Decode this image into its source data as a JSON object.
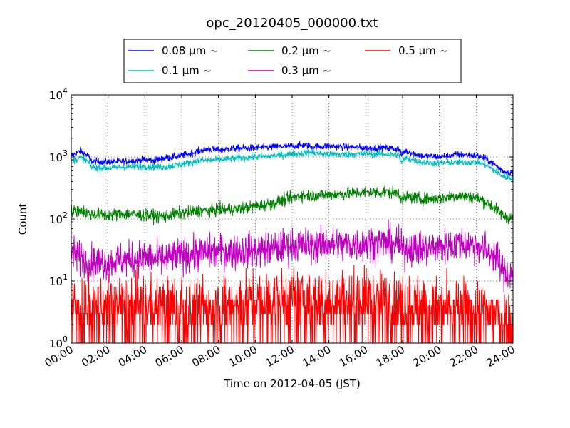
{
  "chart_data": {
    "type": "line",
    "title": "opc_20120405_000000.txt",
    "xlabel": "Time on 2012-04-05 (JST)",
    "ylabel": "Count",
    "x_ticks": [
      "00:00",
      "02:00",
      "04:00",
      "06:00",
      "08:00",
      "10:00",
      "12:00",
      "14:00",
      "16:00",
      "18:00",
      "20:00",
      "22:00",
      "24:00"
    ],
    "xlim_hours": [
      0,
      24
    ],
    "yscale": "log",
    "ylim": [
      1,
      10000
    ],
    "y_ticks": [
      {
        "base": "10",
        "exp": "0",
        "value": 1
      },
      {
        "base": "10",
        "exp": "1",
        "value": 10
      },
      {
        "base": "10",
        "exp": "2",
        "value": 100
      },
      {
        "base": "10",
        "exp": "3",
        "value": 1000
      },
      {
        "base": "10",
        "exp": "4",
        "value": 10000
      }
    ],
    "grid": true,
    "legend_position": "top, above plot",
    "series": [
      {
        "name": "0.08 μm ~",
        "color": "#0000ff",
        "noise": 0.04,
        "x": [
          0,
          0.4,
          0.5,
          0.9,
          1.1,
          2,
          3,
          4,
          4.5,
          5,
          6,
          7,
          7.5,
          8,
          9,
          10,
          11,
          12,
          12.8,
          13,
          14,
          15,
          16,
          17,
          17.8,
          17.95,
          18.05,
          18.2,
          19,
          20,
          21,
          22,
          22.5,
          23,
          23.5,
          24
        ],
        "y": [
          1050,
          1200,
          1250,
          1050,
          850,
          830,
          850,
          900,
          880,
          950,
          1050,
          1250,
          1350,
          1300,
          1380,
          1400,
          1450,
          1500,
          1550,
          1450,
          1500,
          1450,
          1400,
          1400,
          1350,
          1050,
          1200,
          1250,
          1050,
          1000,
          1100,
          1050,
          950,
          750,
          580,
          560
        ]
      },
      {
        "name": "0.1 μm ~",
        "color": "#00bfbf",
        "noise": 0.04,
        "x": [
          0,
          0.4,
          0.5,
          0.9,
          1.1,
          2,
          3,
          4,
          5,
          6,
          7,
          8,
          9,
          10,
          11,
          12,
          13,
          14,
          15,
          16,
          17,
          17.8,
          17.95,
          18.05,
          18.2,
          19,
          20,
          21,
          22,
          22.5,
          23,
          23.5,
          24
        ],
        "y": [
          850,
          950,
          980,
          850,
          680,
          660,
          690,
          700,
          680,
          760,
          870,
          900,
          950,
          1000,
          1040,
          1120,
          1180,
          1100,
          1100,
          1120,
          1120,
          1080,
          800,
          900,
          950,
          820,
          790,
          820,
          820,
          750,
          600,
          480,
          450
        ]
      },
      {
        "name": "0.2 μm ~",
        "color": "#008000",
        "noise": 0.07,
        "x": [
          0,
          0.5,
          1,
          2,
          3,
          4,
          5,
          6,
          7,
          8,
          9,
          10,
          11,
          12,
          12.5,
          13,
          14,
          15,
          16,
          17,
          17.8,
          18,
          18.2,
          19,
          20,
          21,
          22,
          22.5,
          23,
          23.5,
          24
        ],
        "y": [
          130,
          140,
          120,
          115,
          120,
          115,
          110,
          125,
          135,
          140,
          145,
          160,
          180,
          220,
          240,
          240,
          245,
          255,
          270,
          270,
          265,
          195,
          230,
          210,
          215,
          240,
          220,
          190,
          150,
          110,
          105
        ]
      },
      {
        "name": "0.3 μm ~",
        "color": "#bf00bf",
        "noise": 0.2,
        "x": [
          0,
          0.5,
          1,
          2,
          3,
          4,
          5,
          6,
          7,
          8,
          9,
          10,
          11,
          12,
          13,
          14,
          15,
          16,
          17,
          17.8,
          18,
          18.3,
          19,
          20,
          21,
          22,
          22.5,
          23,
          23.5,
          24
        ],
        "y": [
          28,
          25,
          20,
          20,
          22,
          24,
          22,
          26,
          28,
          30,
          30,
          31,
          33,
          38,
          37,
          40,
          38,
          40,
          42,
          38,
          30,
          36,
          32,
          35,
          40,
          38,
          32,
          26,
          14,
          12
        ]
      },
      {
        "name": "0.5 μm ~",
        "color": "#ff0000",
        "noise": 0.35,
        "x": [
          0,
          2,
          4,
          6,
          8,
          10,
          12,
          14,
          16,
          18,
          20,
          22,
          23,
          24
        ],
        "y": [
          4,
          4,
          4,
          4,
          4,
          4.5,
          5,
          5,
          5,
          4.5,
          3.5,
          3.5,
          3,
          2
        ]
      }
    ]
  }
}
